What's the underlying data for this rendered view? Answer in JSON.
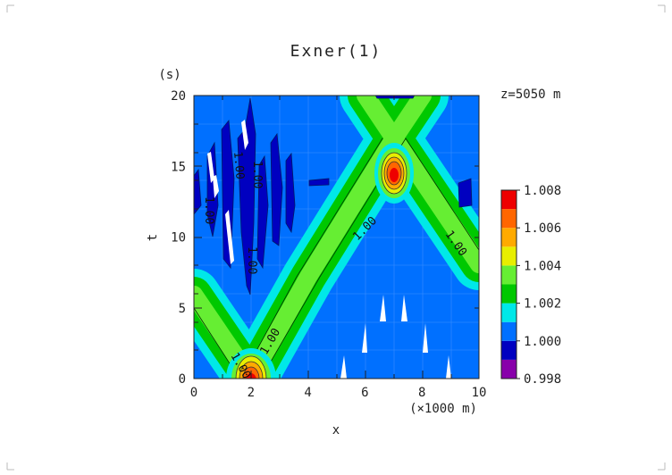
{
  "chart_data": {
    "type": "heatmap",
    "title": "Exner(1)",
    "xlabel": "x",
    "xunit": "(×1000 m)",
    "ylabel": "t",
    "yunit": "(s)",
    "annotation": "z=5050 m",
    "xlim": [
      0,
      10
    ],
    "ylim": [
      0,
      20
    ],
    "xticks": [
      "0",
      "2",
      "4",
      "6",
      "8",
      "10"
    ],
    "yticks": [
      "0",
      "5",
      "10",
      "15",
      "20"
    ],
    "contour_levels": [
      0.998,
      0.999,
      1.0,
      1.001,
      1.002,
      1.003,
      1.004,
      1.005,
      1.006,
      1.007,
      1.008
    ],
    "colorbar": {
      "tick_labels": [
        "0.998",
        "1.000",
        "1.002",
        "1.004",
        "1.006",
        "1.008"
      ],
      "colors": [
        "#8800aa",
        "#0000c0",
        "#0070ff",
        "#00e8e8",
        "#00c800",
        "#66ee33",
        "#e8ee00",
        "#ffaa00",
        "#ff6600",
        "#ee0000",
        "#ff9999"
      ]
    },
    "contour_labels": [
      "1.00",
      "1.00",
      "1.00",
      "1.00",
      "1.00",
      "1.00",
      "1.00",
      "1.00"
    ],
    "features": [
      {
        "kind": "pulse",
        "path": "X-shaped crossing from x=2 at t=0 to x=7 at t=14.5",
        "peak_value": 1.0065
      },
      {
        "kind": "maximum",
        "x": 2,
        "t": 0,
        "value": 1.006
      },
      {
        "kind": "maximum",
        "x": 7,
        "t": 14.3,
        "value": 1.006
      },
      {
        "kind": "low_region",
        "x_range": [
          0.5,
          3.5
        ],
        "t_range": [
          6,
          20
        ],
        "value": 0.9995
      }
    ]
  }
}
